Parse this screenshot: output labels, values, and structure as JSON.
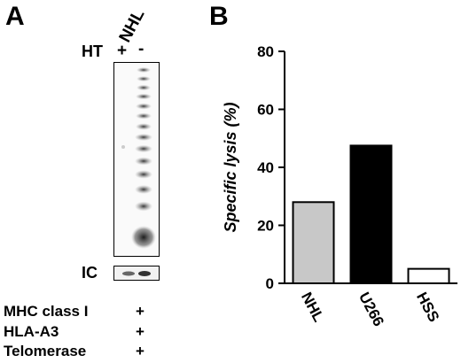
{
  "panel_a": {
    "label": "A",
    "lane_header": "NHL",
    "ht_label": "HT",
    "ht_plus": "+",
    "ht_minus": "-",
    "ic_label": "IC",
    "summary": [
      {
        "label": "MHC class I",
        "mark": "+"
      },
      {
        "label": "HLA-A3",
        "mark": "+"
      },
      {
        "label": "Telomerase",
        "mark": "+"
      }
    ]
  },
  "panel_b": {
    "label": "B"
  },
  "chart_data": {
    "type": "bar",
    "categories": [
      "NHL",
      "U266",
      "HSS"
    ],
    "values": [
      28,
      47.5,
      5
    ],
    "bar_colors": [
      "#c8c8c8",
      "#000000",
      "#ffffff"
    ],
    "ylabel": "Specific lysis (%)",
    "xlabel": "",
    "ylim": [
      0,
      80
    ],
    "yticks": [
      0,
      20,
      40,
      60,
      80
    ],
    "grid": false
  }
}
